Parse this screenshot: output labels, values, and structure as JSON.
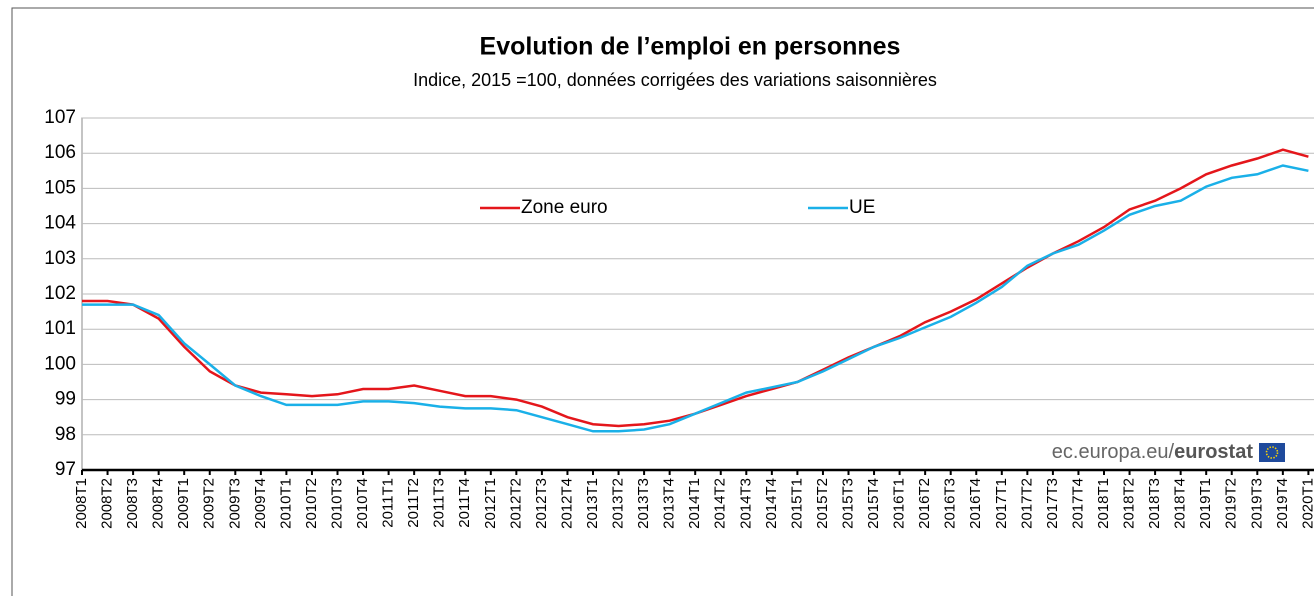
{
  "chart_data": {
    "type": "line",
    "title": "Evolution de l’emploi en personnes",
    "subtitle": "Indice, 2015 =100, données corrigées des variations saisonnières",
    "source": [
      "ec.europa.eu/",
      "eurostat"
    ],
    "categories": [
      "2008T1",
      "2008T2",
      "2008T3",
      "2008T4",
      "2009T1",
      "2009T2",
      "2009T3",
      "2009T4",
      "2010T1",
      "2010T2",
      "2010T3",
      "2010T4",
      "2011T1",
      "2011T2",
      "2011T3",
      "2011T4",
      "2012T1",
      "2012T2",
      "2012T3",
      "2012T4",
      "2013T1",
      "2013T2",
      "2013T3",
      "2013T4",
      "2014T1",
      "2014T2",
      "2014T3",
      "2014T4",
      "2015T1",
      "2015T2",
      "2015T3",
      "2015T4",
      "2016T1",
      "2016T2",
      "2016T3",
      "2016T4",
      "2017T1",
      "2017T2",
      "2017T3",
      "2017T4",
      "2018T1",
      "2018T2",
      "2018T3",
      "2018T4",
      "2019T1",
      "2019T2",
      "2019T3",
      "2019T4",
      "2020T1"
    ],
    "series": [
      {
        "name": "Zone euro",
        "color": "#e4161b",
        "values": [
          101.8,
          101.8,
          101.7,
          101.3,
          100.5,
          99.8,
          99.4,
          99.2,
          99.15,
          99.1,
          99.15,
          99.3,
          99.3,
          99.4,
          99.25,
          99.1,
          99.1,
          99.0,
          98.8,
          98.5,
          98.3,
          98.25,
          98.3,
          98.4,
          98.6,
          98.85,
          99.1,
          99.3,
          99.5,
          99.85,
          100.2,
          100.5,
          100.8,
          101.2,
          101.5,
          101.85,
          102.3,
          102.75,
          103.15,
          103.5,
          103.9,
          104.4,
          104.65,
          105.0,
          105.4,
          105.65,
          105.85,
          106.1,
          105.9
        ]
      },
      {
        "name": "UE",
        "color": "#1ab0e8",
        "values": [
          101.7,
          101.7,
          101.7,
          101.4,
          100.6,
          100.0,
          99.4,
          99.1,
          98.85,
          98.85,
          98.85,
          98.95,
          98.95,
          98.9,
          98.8,
          98.75,
          98.75,
          98.7,
          98.5,
          98.3,
          98.1,
          98.1,
          98.15,
          98.3,
          98.6,
          98.9,
          99.2,
          99.35,
          99.5,
          99.8,
          100.15,
          100.5,
          100.75,
          101.05,
          101.35,
          101.75,
          102.2,
          102.8,
          103.15,
          103.4,
          103.8,
          104.25,
          104.5,
          104.65,
          105.05,
          105.3,
          105.4,
          105.65,
          105.5
        ]
      }
    ],
    "ylim": [
      97,
      107
    ],
    "yticks": [
      97,
      98,
      99,
      100,
      101,
      102,
      103,
      104,
      105,
      106,
      107
    ],
    "grid": true,
    "legend": "top"
  }
}
